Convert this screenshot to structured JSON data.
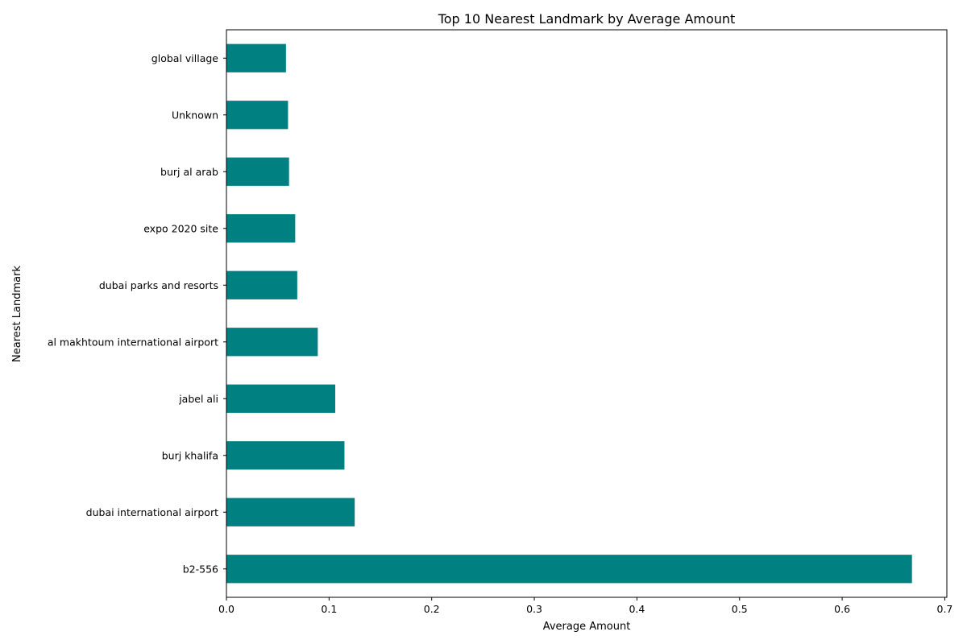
{
  "chart_data": {
    "type": "bar",
    "orientation": "horizontal",
    "title": "Top 10 Nearest Landmark by Average Amount",
    "xlabel": "Average Amount",
    "ylabel": "Nearest Landmark",
    "categories": [
      "b2-556",
      "dubai international airport",
      "burj khalifa",
      "jabel ali",
      "al makhtoum international airport",
      "dubai parks and resorts",
      "expo 2020 site",
      "burj al arab",
      "Unknown",
      "global village"
    ],
    "values": [
      0.668,
      0.125,
      0.115,
      0.106,
      0.089,
      0.069,
      0.067,
      0.061,
      0.06,
      0.058
    ],
    "xlim": [
      0,
      0.702
    ],
    "xticks": [
      0.0,
      0.1,
      0.2,
      0.3,
      0.4,
      0.5,
      0.6,
      0.7
    ],
    "xtick_labels": [
      "0.0",
      "0.1",
      "0.2",
      "0.3",
      "0.4",
      "0.5",
      "0.6",
      "0.7"
    ],
    "bar_color": "#008080",
    "grid": false,
    "legend": false
  }
}
